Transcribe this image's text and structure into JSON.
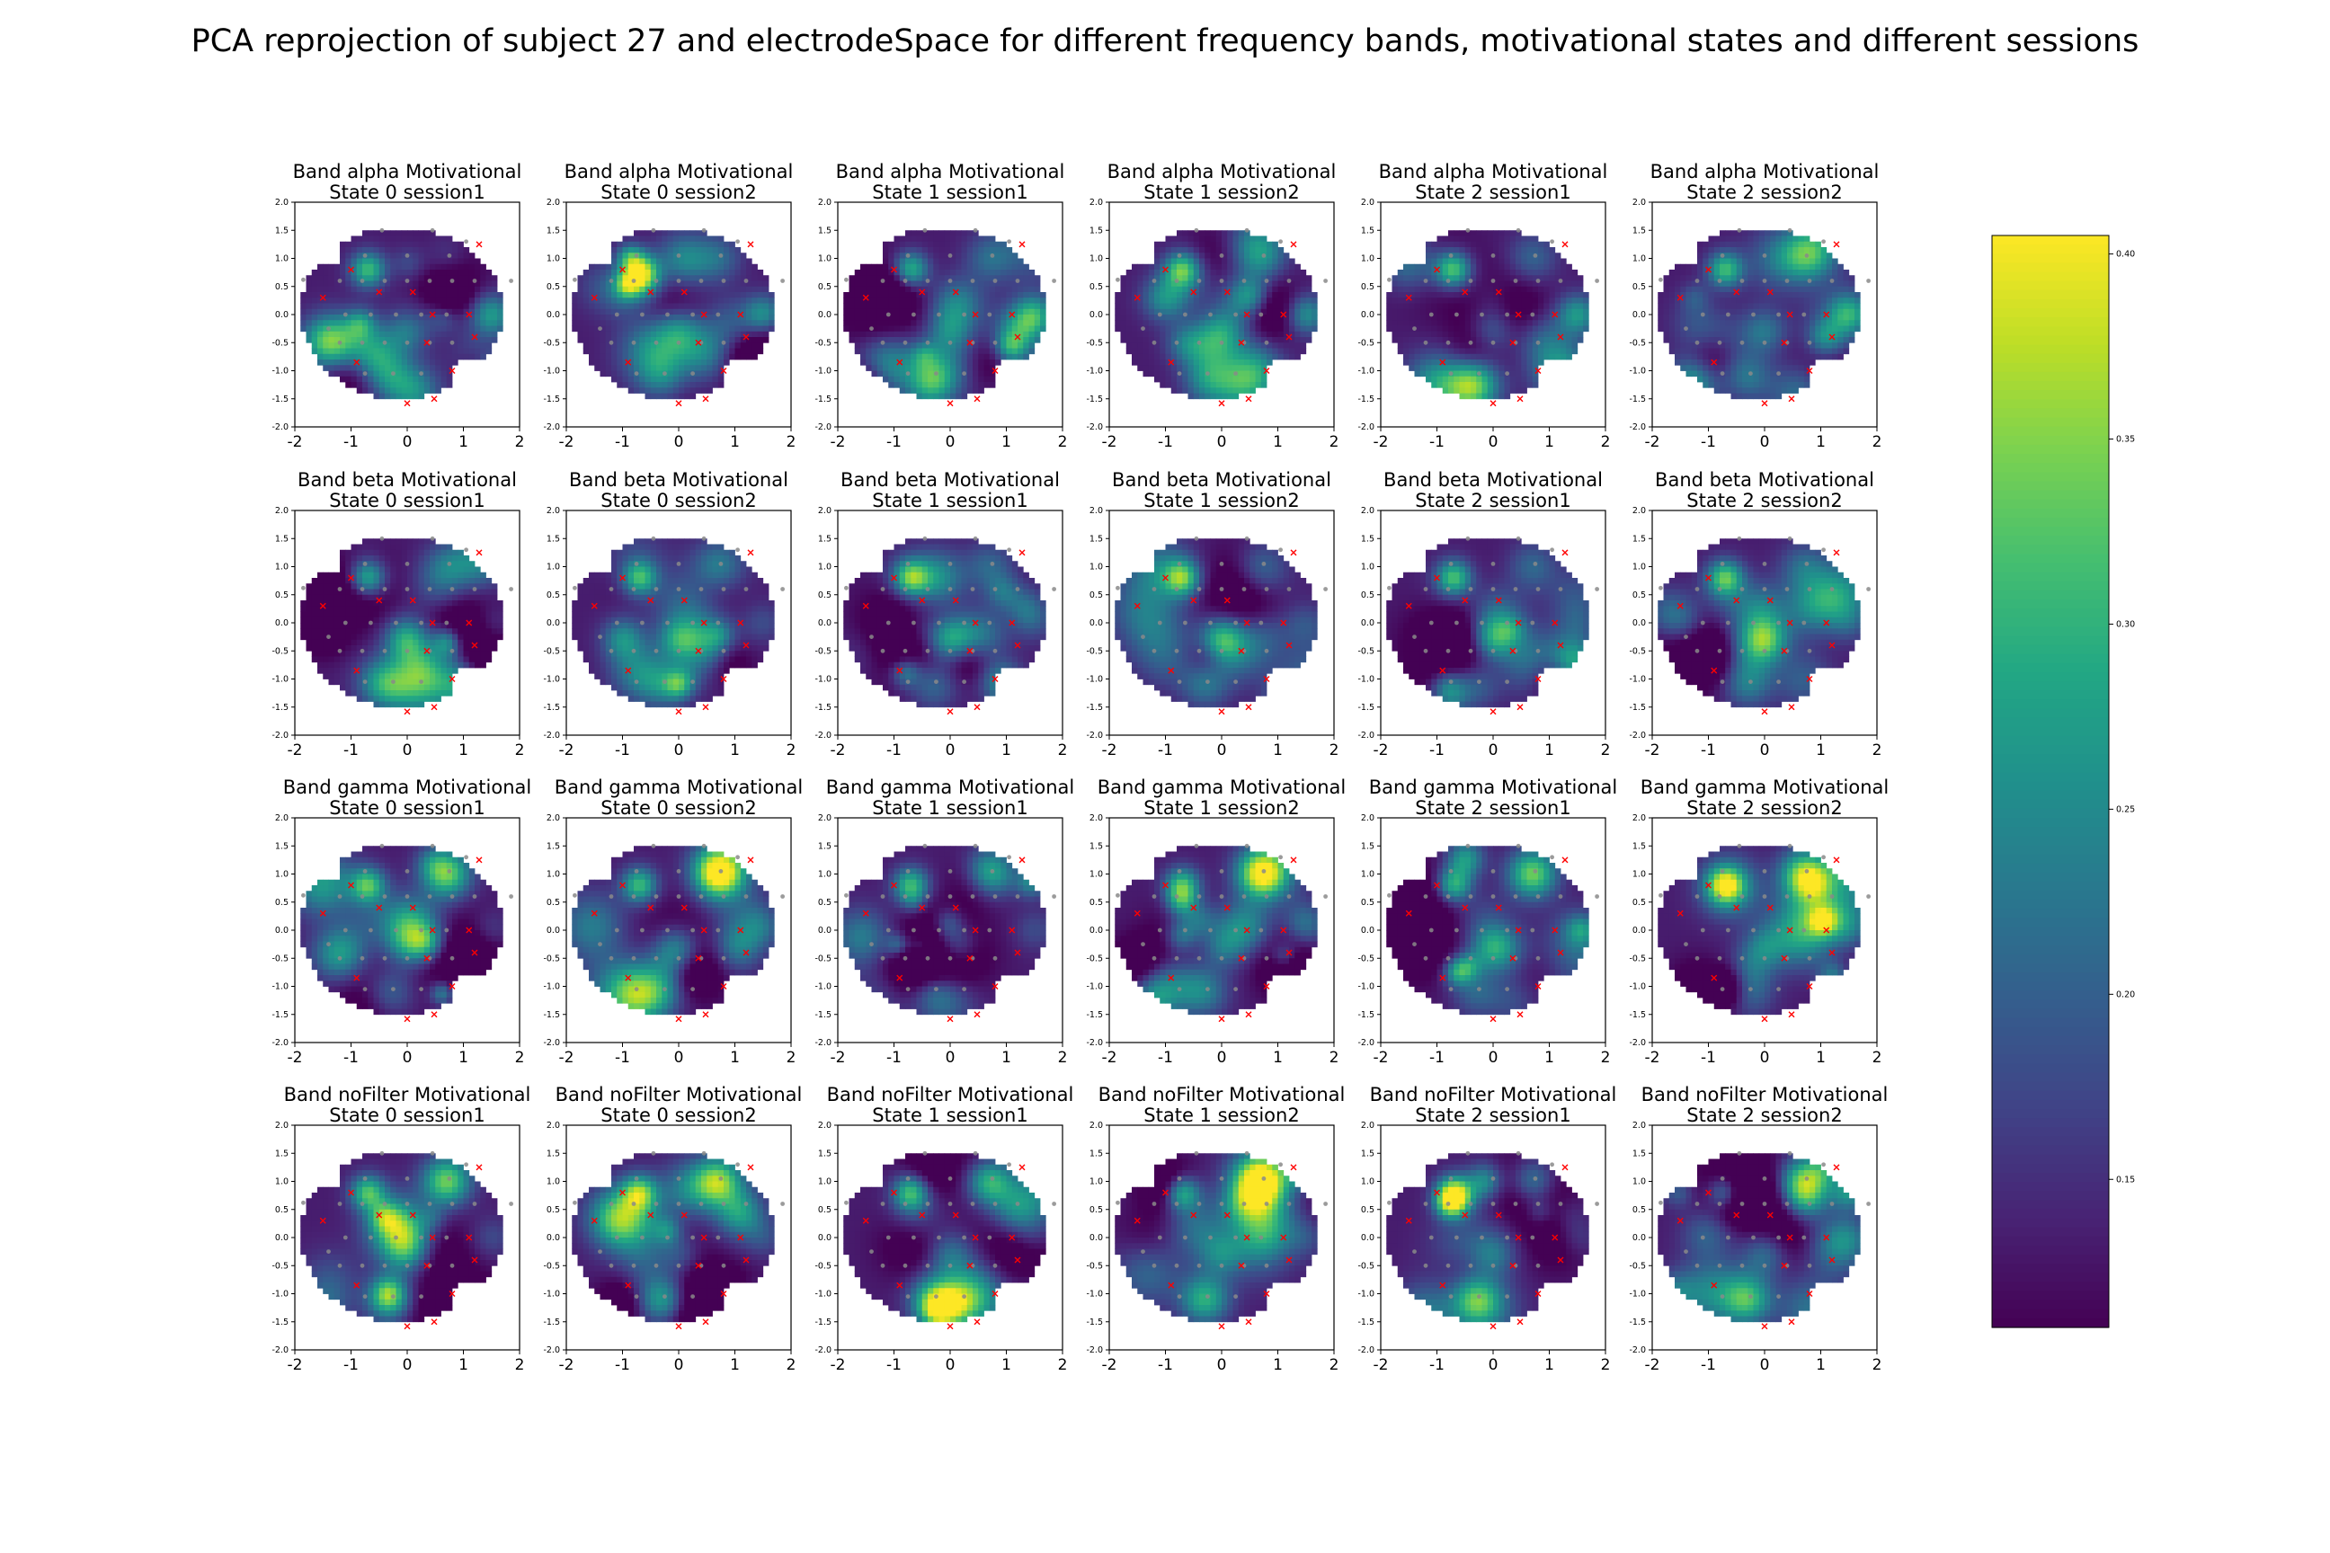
{
  "figure_title": "PCA reprojection of subject 27 and electrodeSpace for different frequency bands, motivational states and different sessions",
  "colors": {
    "colormap": "viridis",
    "electrode_marker": "#8a8a8a",
    "reference_marker": "#ff0000",
    "axes": "#000000"
  },
  "chart_data": {
    "type": "heatmap",
    "colormap": "viridis",
    "grid": false,
    "rows": [
      "alpha",
      "beta",
      "gamma",
      "noFilter"
    ],
    "cols": [
      {
        "state": "0",
        "session": "session1"
      },
      {
        "state": "0",
        "session": "session2"
      },
      {
        "state": "1",
        "session": "session1"
      },
      {
        "state": "1",
        "session": "session2"
      },
      {
        "state": "2",
        "session": "session1"
      },
      {
        "state": "2",
        "session": "session2"
      }
    ],
    "title_template": [
      "Band {band} Motivational",
      "State {state} {session}"
    ],
    "subplots": [
      {
        "title_line1": "Band alpha Motivational",
        "title_line2": "State 0 session1"
      },
      {
        "title_line1": "Band alpha Motivational",
        "title_line2": "State 0 session2"
      },
      {
        "title_line1": "Band alpha Motivational",
        "title_line2": "State 1 session1"
      },
      {
        "title_line1": "Band alpha Motivational",
        "title_line2": "State 1 session2"
      },
      {
        "title_line1": "Band alpha Motivational",
        "title_line2": "State 2 session1"
      },
      {
        "title_line1": "Band alpha Motivational",
        "title_line2": "State 2 session2"
      },
      {
        "title_line1": "Band beta Motivational",
        "title_line2": "State 0 session1"
      },
      {
        "title_line1": "Band beta Motivational",
        "title_line2": "State 0 session2"
      },
      {
        "title_line1": "Band beta Motivational",
        "title_line2": "State 1 session1"
      },
      {
        "title_line1": "Band beta Motivational",
        "title_line2": "State 1 session2"
      },
      {
        "title_line1": "Band beta Motivational",
        "title_line2": "State 2 session1"
      },
      {
        "title_line1": "Band beta Motivational",
        "title_line2": "State 2 session2"
      },
      {
        "title_line1": "Band gamma Motivational",
        "title_line2": "State 0 session1"
      },
      {
        "title_line1": "Band gamma Motivational",
        "title_line2": "State 0 session2"
      },
      {
        "title_line1": "Band gamma Motivational",
        "title_line2": "State 1 session1"
      },
      {
        "title_line1": "Band gamma Motivational",
        "title_line2": "State 1 session2"
      },
      {
        "title_line1": "Band gamma Motivational",
        "title_line2": "State 2 session1"
      },
      {
        "title_line1": "Band gamma Motivational",
        "title_line2": "State 2 session2"
      },
      {
        "title_line1": "Band noFilter Motivational",
        "title_line2": "State 0 session1"
      },
      {
        "title_line1": "Band noFilter Motivational",
        "title_line2": "State 0 session2"
      },
      {
        "title_line1": "Band noFilter Motivational",
        "title_line2": "State 1 session1"
      },
      {
        "title_line1": "Band noFilter Motivational",
        "title_line2": "State 1 session2"
      },
      {
        "title_line1": "Band noFilter Motivational",
        "title_line2": "State 2 session1"
      },
      {
        "title_line1": "Band noFilter Motivational",
        "title_line2": "State 2 session2"
      }
    ],
    "xlim": [
      -2,
      2
    ],
    "ylim": [
      -2,
      2
    ],
    "x_ticks": [
      "-2",
      "-1",
      "0",
      "1",
      "2"
    ],
    "x_tick_values": [
      -2,
      -1,
      0,
      1,
      2
    ],
    "y_ticks": [
      "2.0",
      "1.5",
      "1.0",
      "0.5",
      "0.0",
      "-0.5",
      "-1.0",
      "-1.5",
      "-2.0"
    ],
    "y_tick_values": [
      2.0,
      1.5,
      1.0,
      0.5,
      0.0,
      -0.5,
      -1.0,
      -1.5,
      -2.0
    ],
    "colorbar": {
      "range": [
        0.11,
        0.405
      ],
      "ticks": [
        "0.40",
        "0.35",
        "0.30",
        "0.25",
        "0.20",
        "0.15"
      ],
      "tick_values": [
        0.4,
        0.35,
        0.3,
        0.25,
        0.2,
        0.15
      ]
    },
    "reference_markers": [
      {
        "x": 1.28,
        "y": 1.25
      },
      {
        "x": 0.0,
        "y": -1.58
      },
      {
        "x": 0.48,
        "y": -1.5
      },
      {
        "x": -1.0,
        "y": 0.8
      },
      {
        "x": -0.5,
        "y": 0.4
      },
      {
        "x": 0.1,
        "y": 0.4
      },
      {
        "x": 0.45,
        "y": 0.0
      },
      {
        "x": 1.1,
        "y": 0.0
      },
      {
        "x": -0.9,
        "y": -0.85
      },
      {
        "x": 0.35,
        "y": -0.5
      },
      {
        "x": 1.2,
        "y": -0.4
      },
      {
        "x": -1.5,
        "y": 0.3
      },
      {
        "x": 0.8,
        "y": -1.0
      }
    ],
    "electrode_markers": [
      {
        "x": -1.85,
        "y": 0.62
      },
      {
        "x": 1.85,
        "y": 0.6
      },
      {
        "x": -0.45,
        "y": 1.5
      },
      {
        "x": 0.45,
        "y": 1.5
      },
      {
        "x": -0.75,
        "y": 1.05
      },
      {
        "x": 0.0,
        "y": 1.05
      },
      {
        "x": 0.75,
        "y": 1.05
      },
      {
        "x": -1.2,
        "y": 0.6
      },
      {
        "x": -0.8,
        "y": 0.6
      },
      {
        "x": -0.4,
        "y": 0.6
      },
      {
        "x": 0.0,
        "y": 0.6
      },
      {
        "x": 0.4,
        "y": 0.6
      },
      {
        "x": 0.8,
        "y": 0.6
      },
      {
        "x": 1.2,
        "y": 0.6
      },
      {
        "x": -1.1,
        "y": 0.0
      },
      {
        "x": -0.65,
        "y": 0.0
      },
      {
        "x": -0.2,
        "y": 0.0
      },
      {
        "x": 0.25,
        "y": 0.0
      },
      {
        "x": 0.7,
        "y": 0.0
      },
      {
        "x": -1.2,
        "y": -0.5
      },
      {
        "x": -0.8,
        "y": -0.5
      },
      {
        "x": -0.4,
        "y": -0.5
      },
      {
        "x": 0.0,
        "y": -0.5
      },
      {
        "x": 0.4,
        "y": -0.5
      },
      {
        "x": 0.8,
        "y": -0.5
      },
      {
        "x": -0.75,
        "y": -1.05
      },
      {
        "x": -0.25,
        "y": -1.05
      },
      {
        "x": 0.25,
        "y": -1.05
      },
      {
        "x": -1.4,
        "y": -0.25
      },
      {
        "x": 1.05,
        "y": 1.3
      }
    ]
  }
}
